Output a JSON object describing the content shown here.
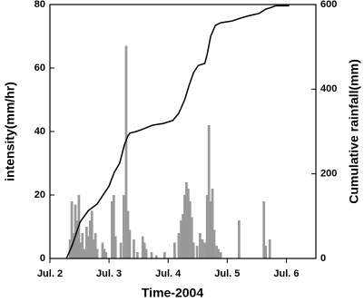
{
  "chart_data": {
    "type": "bar",
    "xlabel": "Time-2004",
    "ylabel": "intensity(mm/hr)",
    "y2label": "Cumulative rainfall(mm)",
    "xlim": [
      2,
      6.5
    ],
    "xticks": [
      {
        "value": 2,
        "label": "Jul. 2"
      },
      {
        "value": 3,
        "label": "Jul. 3"
      },
      {
        "value": 4,
        "label": "Jul. 4"
      },
      {
        "value": 5,
        "label": "Jul. 5"
      },
      {
        "value": 6,
        "label": "Jul. 6"
      }
    ],
    "ylim": [
      0,
      80
    ],
    "yticks": [
      0,
      20,
      40,
      60,
      80
    ],
    "y2lim": [
      0,
      600
    ],
    "y2ticks": [
      0,
      200,
      400,
      600
    ],
    "series": [
      {
        "type": "bar",
        "color": "#999999",
        "x": [
          2.34,
          2.37,
          2.4,
          2.43,
          2.46,
          2.49,
          2.52,
          2.55,
          2.58,
          2.62,
          2.65,
          2.68,
          2.71,
          2.74,
          2.77,
          2.8,
          2.89,
          2.92,
          2.95,
          3.05,
          3.08,
          3.11,
          3.2,
          3.25,
          3.29,
          3.32,
          3.35,
          3.42,
          3.48,
          3.57,
          3.6,
          3.63,
          3.72,
          3.8,
          3.94,
          4.11,
          4.18,
          4.22,
          4.25,
          4.28,
          4.31,
          4.34,
          4.37,
          4.4,
          4.43,
          4.49,
          4.54,
          4.58,
          4.62,
          4.66,
          4.69,
          4.72,
          4.75,
          4.78,
          4.82,
          4.85,
          4.89,
          5.2,
          5.62,
          5.65,
          5.72
        ],
        "values": [
          6,
          18,
          8,
          17,
          12,
          20,
          5,
          8,
          3,
          10,
          7,
          12,
          15,
          6,
          8,
          3,
          5,
          3,
          2,
          18,
          20,
          7,
          5,
          20,
          67,
          15,
          9,
          6,
          2,
          7,
          5,
          3,
          2,
          1,
          2,
          5,
          8,
          12,
          14,
          20,
          24,
          22,
          18,
          13,
          5,
          4,
          8,
          6,
          5,
          20,
          42,
          18,
          22,
          9,
          4,
          3,
          2,
          12,
          18,
          4,
          6
        ]
      },
      {
        "type": "line",
        "axis": "y2",
        "color": "#000000",
        "x": [
          2.28,
          2.38,
          2.51,
          2.65,
          2.8,
          2.92,
          3.0,
          3.09,
          3.18,
          3.26,
          3.32,
          3.35,
          3.46,
          3.58,
          3.74,
          3.92,
          4.08,
          4.18,
          4.28,
          4.35,
          4.43,
          4.51,
          4.62,
          4.66,
          4.72,
          4.8,
          4.89,
          5.08,
          5.23,
          5.38,
          5.54,
          5.65,
          5.74,
          5.82,
          6.05
        ],
        "values": [
          0,
          32,
          86,
          113,
          129,
          154,
          171,
          204,
          225,
          268,
          289,
          296,
          300,
          306,
          315,
          319,
          326,
          343,
          375,
          407,
          439,
          456,
          461,
          482,
          525,
          551,
          557,
          561,
          568,
          574,
          579,
          589,
          593,
          597,
          597
        ]
      }
    ]
  }
}
